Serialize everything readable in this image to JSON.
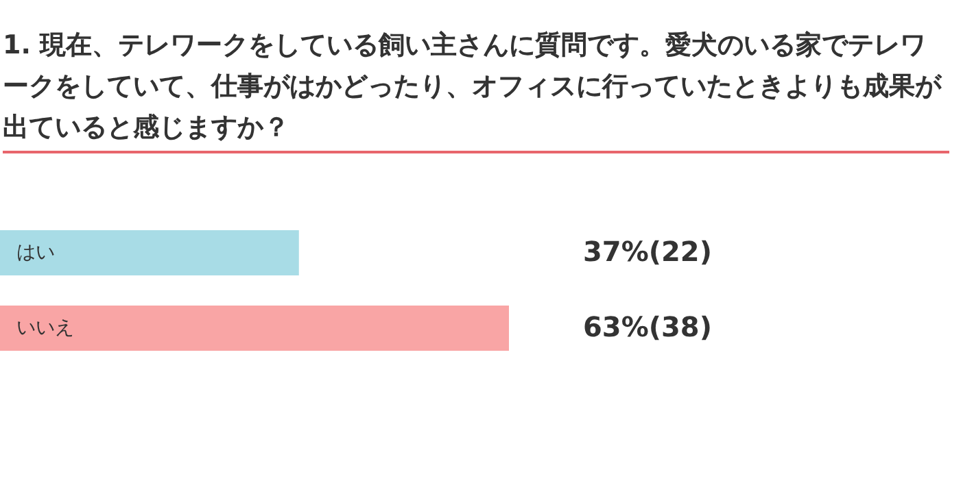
{
  "chart_data": {
    "type": "bar",
    "orientation": "horizontal",
    "title": "1. 現在、テレワークをしている飼い主さんに質問です。愛犬のいる家でテレワークをしていて、仕事がはかどったり、オフィスに行っていたときよりも成果が出ていると感じますか？",
    "categories": [
      "はい",
      "いいえ"
    ],
    "values": [
      37,
      63
    ],
    "colors": [
      "#a8dce6",
      "#f9a5a5"
    ],
    "value_labels": [
      "37%(22)",
      "63%(38)"
    ]
  }
}
